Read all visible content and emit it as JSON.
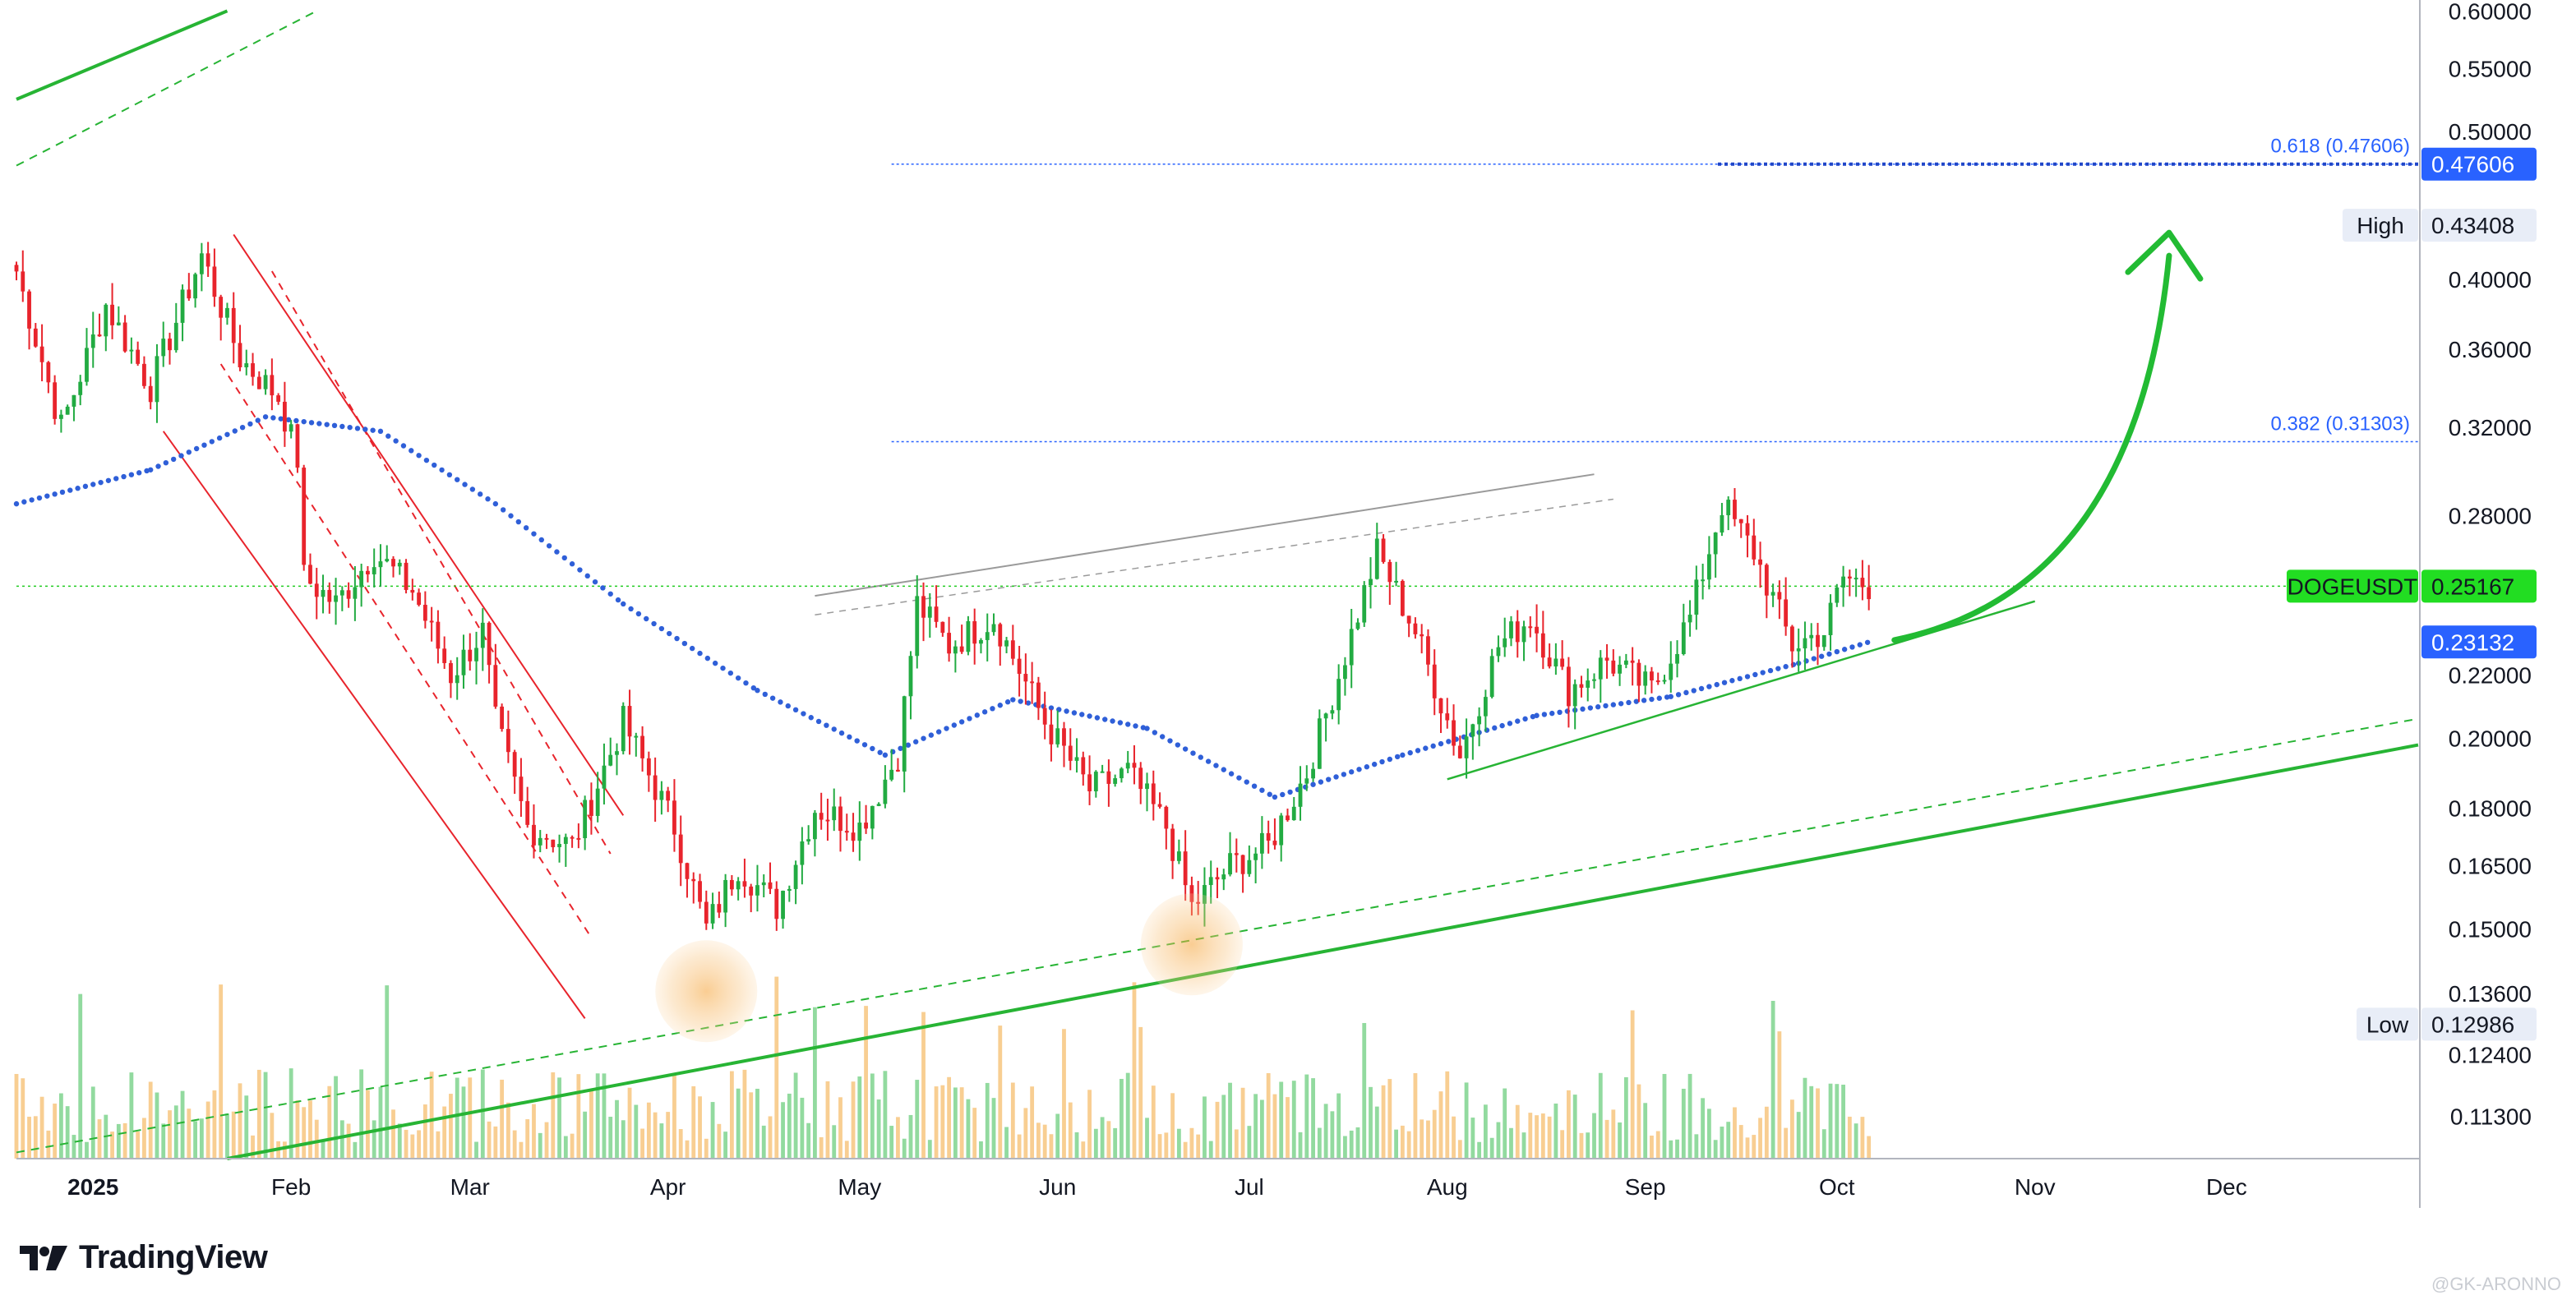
{
  "chart_data": {
    "type": "candlestick",
    "symbol": "DOGEUSDT",
    "brand": "TradingView",
    "watermark": "@GK-ARONNO",
    "price_axis": {
      "scale": "log",
      "range": [
        0.106,
        0.61
      ],
      "ticks": [
        "0.60000",
        "0.55000",
        "0.50000",
        "0.40000",
        "0.36000",
        "0.32000",
        "0.28000",
        "0.22000",
        "0.20000",
        "0.18000",
        "0.16500",
        "0.15000",
        "0.13600",
        "0.12400",
        "0.11300"
      ]
    },
    "time_axis": {
      "range": [
        "2024-12-20",
        "2025-12-31"
      ],
      "ticks": [
        {
          "label": "2025",
          "date": "2025-01-01",
          "bold": true
        },
        {
          "label": "Feb",
          "date": "2025-02-01"
        },
        {
          "label": "Mar",
          "date": "2025-03-01"
        },
        {
          "label": "Apr",
          "date": "2025-04-01"
        },
        {
          "label": "May",
          "date": "2025-05-01"
        },
        {
          "label": "Jun",
          "date": "2025-06-01"
        },
        {
          "label": "Jul",
          "date": "2025-07-01"
        },
        {
          "label": "Aug",
          "date": "2025-08-01"
        },
        {
          "label": "Sep",
          "date": "2025-09-01"
        },
        {
          "label": "Oct",
          "date": "2025-10-01"
        },
        {
          "label": "Nov",
          "date": "2025-11-01"
        },
        {
          "label": "Dec",
          "date": "2025-12-01"
        }
      ]
    },
    "price_tags": [
      {
        "label": "",
        "value": "0.47606",
        "price": 0.47606,
        "bg": "#2962ff",
        "fg": "#ffffff"
      },
      {
        "label": "High",
        "value": "0.43408",
        "price": 0.43408,
        "bg": "#e8edf7",
        "fg": "#131722"
      },
      {
        "label": "DOGEUSDT",
        "value": "0.25167",
        "price": 0.25167,
        "bg": "#22dd22",
        "fg": "#131722"
      },
      {
        "label": "",
        "value": "0.23132",
        "price": 0.23132,
        "bg": "#2962ff",
        "fg": "#ffffff"
      },
      {
        "label": "Low",
        "value": "0.12986",
        "price": 0.12986,
        "bg": "#e8edf7",
        "fg": "#131722"
      }
    ],
    "fib_levels": [
      {
        "label": "0.618 (0.47606)",
        "price": 0.47606,
        "start": "2025-05-06"
      },
      {
        "label": "0.382 (0.31303)",
        "price": 0.31303,
        "start": "2025-05-06"
      }
    ],
    "ohlc_anchors": [
      [
        "2024-12-20",
        0.405
      ],
      [
        "2024-12-27",
        0.32
      ],
      [
        "2025-01-03",
        0.385
      ],
      [
        "2025-01-10",
        0.34
      ],
      [
        "2025-01-18",
        0.415
      ],
      [
        "2025-01-24",
        0.355
      ],
      [
        "2025-01-30",
        0.335
      ],
      [
        "2025-02-02",
        0.305
      ],
      [
        "2025-02-03",
        0.255
      ],
      [
        "2025-02-08",
        0.245
      ],
      [
        "2025-02-14",
        0.265
      ],
      [
        "2025-02-20",
        0.25
      ],
      [
        "2025-02-26",
        0.22
      ],
      [
        "2025-03-03",
        0.235
      ],
      [
        "2025-03-05",
        0.205
      ],
      [
        "2025-03-10",
        0.175
      ],
      [
        "2025-03-17",
        0.17
      ],
      [
        "2025-03-25",
        0.205
      ],
      [
        "2025-04-02",
        0.175
      ],
      [
        "2025-04-07",
        0.15
      ],
      [
        "2025-04-12",
        0.165
      ],
      [
        "2025-04-18",
        0.155
      ],
      [
        "2025-04-24",
        0.18
      ],
      [
        "2025-05-01",
        0.175
      ],
      [
        "2025-05-07",
        0.195
      ],
      [
        "2025-05-10",
        0.245
      ],
      [
        "2025-05-15",
        0.23
      ],
      [
        "2025-05-22",
        0.24
      ],
      [
        "2025-05-30",
        0.205
      ],
      [
        "2025-06-06",
        0.185
      ],
      [
        "2025-06-12",
        0.19
      ],
      [
        "2025-06-18",
        0.175
      ],
      [
        "2025-06-22",
        0.155
      ],
      [
        "2025-06-28",
        0.165
      ],
      [
        "2025-07-04",
        0.17
      ],
      [
        "2025-07-10",
        0.19
      ],
      [
        "2025-07-15",
        0.22
      ],
      [
        "2025-07-21",
        0.265
      ],
      [
        "2025-07-27",
        0.235
      ],
      [
        "2025-08-03",
        0.195
      ],
      [
        "2025-08-09",
        0.23
      ],
      [
        "2025-08-14",
        0.24
      ],
      [
        "2025-08-20",
        0.215
      ],
      [
        "2025-08-26",
        0.225
      ],
      [
        "2025-09-02",
        0.215
      ],
      [
        "2025-09-08",
        0.24
      ],
      [
        "2025-09-13",
        0.285
      ],
      [
        "2025-09-18",
        0.265
      ],
      [
        "2025-09-24",
        0.23
      ],
      [
        "2025-09-29",
        0.235
      ],
      [
        "2025-10-02",
        0.255
      ],
      [
        "2025-10-06",
        0.252
      ]
    ],
    "ma_anchors": [
      [
        "2024-12-20",
        0.285
      ],
      [
        "2025-01-10",
        0.3
      ],
      [
        "2025-01-28",
        0.325
      ],
      [
        "2025-02-15",
        0.318
      ],
      [
        "2025-03-05",
        0.285
      ],
      [
        "2025-03-25",
        0.245
      ],
      [
        "2025-04-15",
        0.215
      ],
      [
        "2025-05-05",
        0.195
      ],
      [
        "2025-05-25",
        0.212
      ],
      [
        "2025-06-15",
        0.203
      ],
      [
        "2025-07-05",
        0.183
      ],
      [
        "2025-07-25",
        0.195
      ],
      [
        "2025-08-15",
        0.207
      ],
      [
        "2025-09-05",
        0.213
      ],
      [
        "2025-09-25",
        0.224
      ],
      [
        "2025-10-06",
        0.2313
      ]
    ],
    "annotations": {
      "support_line": [
        [
          "2025-01-22",
          0.106
        ],
        [
          "2025-12-31",
          0.198
        ]
      ],
      "support_line_dashed": [
        [
          "2024-12-20",
          0.107
        ],
        [
          "2025-12-31",
          0.206
        ]
      ],
      "upper_line": [
        [
          "2024-12-20",
          0.525
        ],
        [
          "2025-01-22",
          0.6
        ]
      ],
      "upper_line_dashed": [
        [
          "2024-12-20",
          0.475
        ],
        [
          "2025-02-05",
          0.6
        ]
      ],
      "wedge_upper": [
        [
          "2025-04-24",
          0.248
        ],
        [
          "2025-08-24",
          0.298
        ]
      ],
      "wedge_upper_dashed": [
        [
          "2025-04-24",
          0.241
        ],
        [
          "2025-08-27",
          0.287
        ]
      ],
      "rising_support": [
        [
          "2025-08-01",
          0.188
        ],
        [
          "2025-11-01",
          0.246
        ]
      ],
      "channel_top": [
        [
          "2025-01-23",
          0.428
        ],
        [
          "2025-03-25",
          0.178
        ]
      ],
      "channel_bottom": [
        [
          "2025-01-12",
          0.318
        ],
        [
          "2025-03-19",
          0.131
        ]
      ],
      "channel_mid_dashed": [
        [
          [
            "2025-01-29",
            0.405
          ],
          [
            "2025-03-23",
            0.168
          ]
        ],
        [
          [
            "2025-01-21",
            0.352
          ],
          [
            "2025-03-20",
            0.148
          ]
        ]
      ],
      "circles": [
        [
          "2025-04-07",
          0.1365
        ],
        [
          "2025-06-22",
          0.1465
        ]
      ],
      "current_price_line": 0.25167,
      "arrow": {
        "from": [
          "2025-10-10",
          0.232
        ],
        "to": [
          "2025-11-22",
          0.425
        ]
      }
    }
  }
}
